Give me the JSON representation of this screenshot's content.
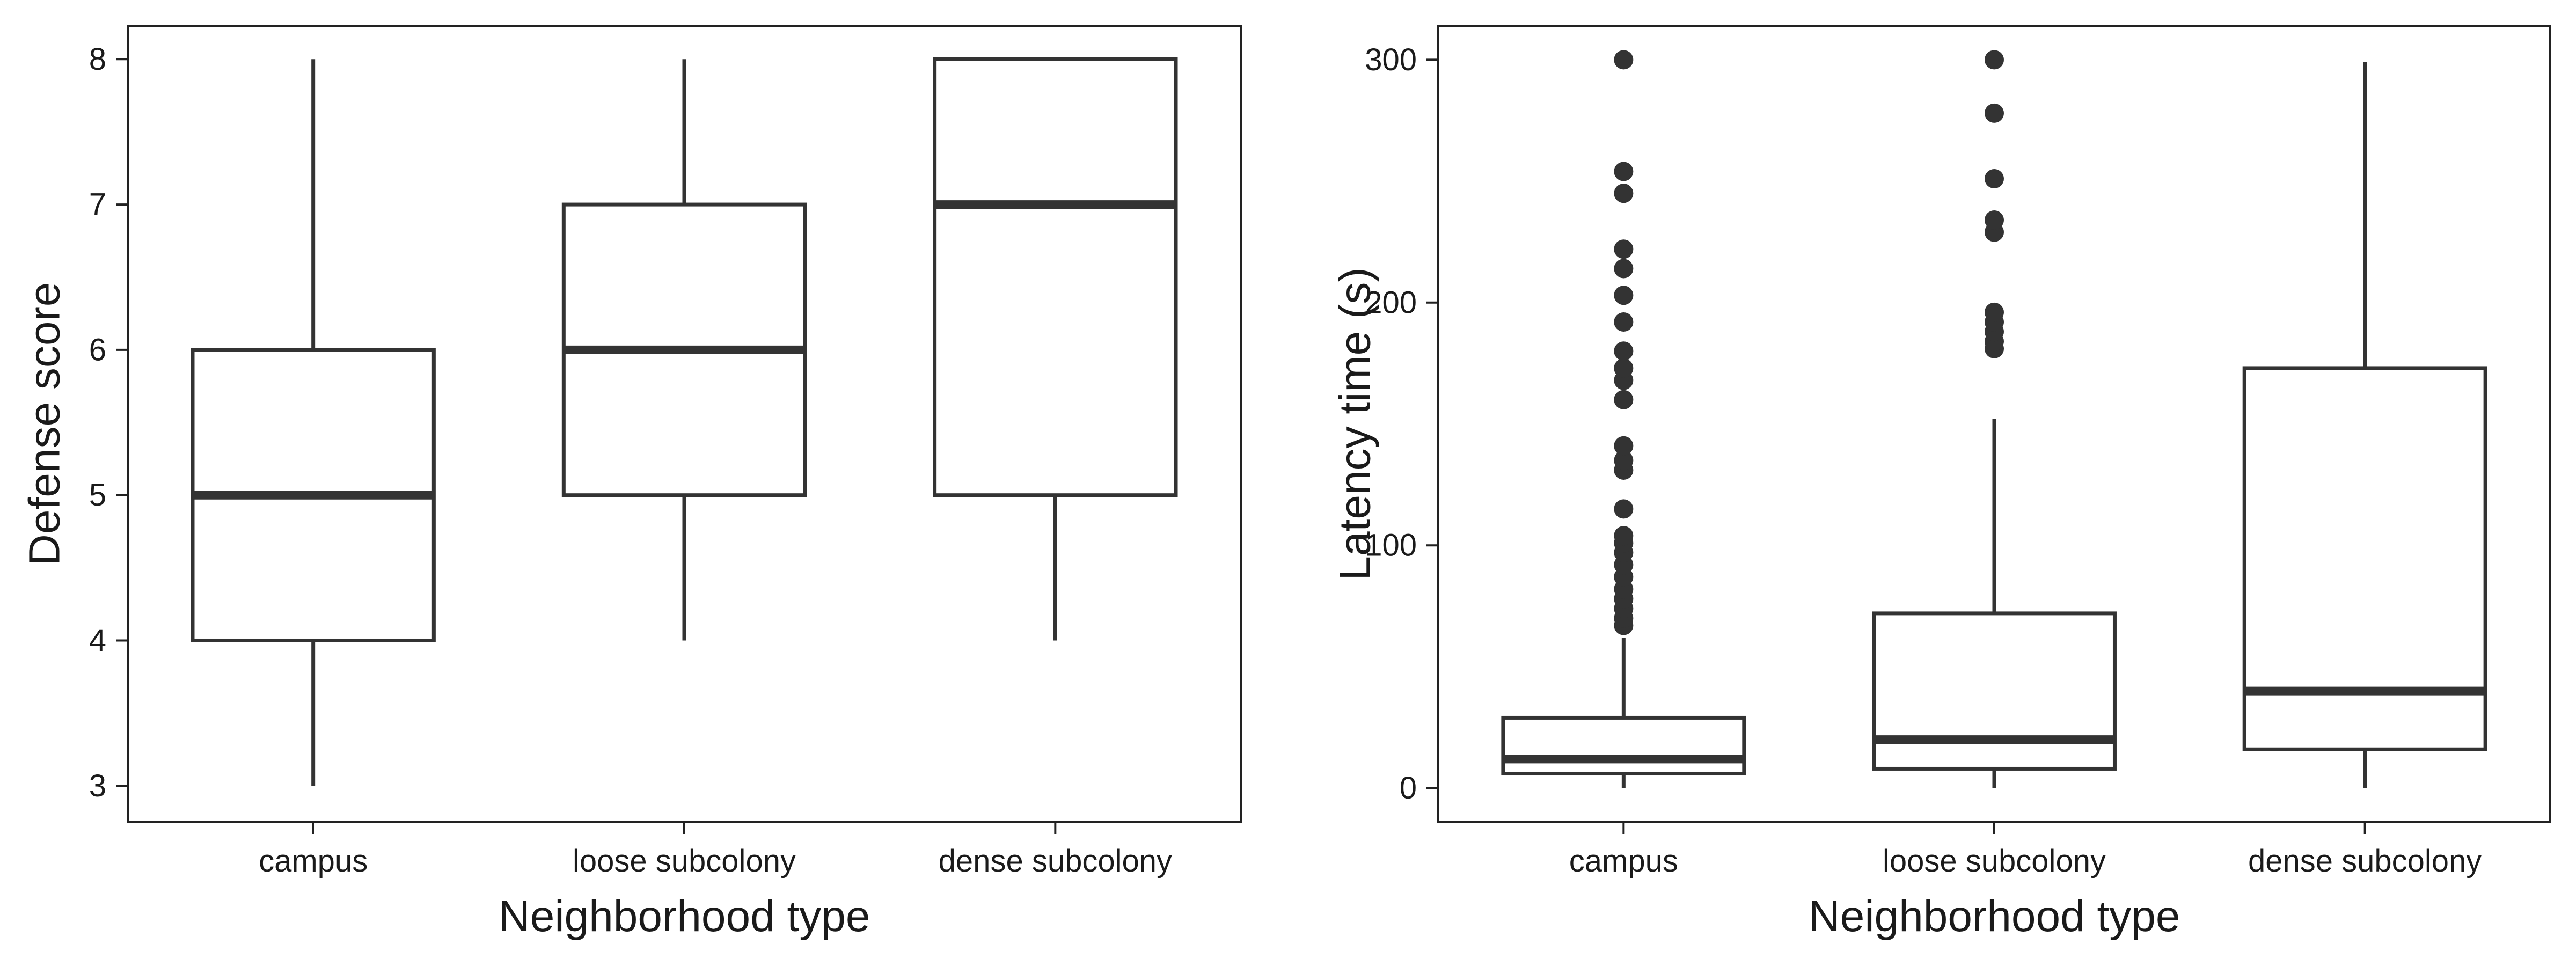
{
  "chart_data": [
    {
      "type": "boxplot",
      "xlabel": "Neighborhood type",
      "ylabel": "Defense score",
      "categories": [
        "campus",
        "loose subcolony",
        "dense subcolony"
      ],
      "ylim": [
        2.75,
        8.23
      ],
      "yticks": [
        3,
        4,
        5,
        6,
        7,
        8
      ],
      "boxes": [
        {
          "category": "campus",
          "whisker_low": 3,
          "q1": 4,
          "median": 5,
          "q3": 6,
          "whisker_high": 8,
          "outliers": []
        },
        {
          "category": "loose subcolony",
          "whisker_low": 4,
          "q1": 5,
          "median": 6,
          "q3": 7,
          "whisker_high": 8,
          "outliers": []
        },
        {
          "category": "dense subcolony",
          "whisker_low": 4,
          "q1": 5,
          "median": 7,
          "q3": 8,
          "whisker_high": 8,
          "outliers": []
        }
      ],
      "grid": false,
      "colors": {
        "stroke": "#333333",
        "fill": "#ffffff"
      }
    },
    {
      "type": "boxplot",
      "xlabel": "Neighborhood type",
      "ylabel": "Latency time (s)",
      "categories": [
        "campus",
        "loose subcolony",
        "dense subcolony"
      ],
      "ylim": [
        -14,
        314
      ],
      "yticks": [
        0,
        100,
        200,
        300
      ],
      "boxes": [
        {
          "category": "campus",
          "whisker_low": 0,
          "q1": 6,
          "median": 12,
          "q3": 29,
          "whisker_high": 62,
          "outliers": [
            67,
            70,
            74,
            78,
            82,
            87,
            92,
            97,
            101,
            104,
            115,
            131,
            135,
            141,
            160,
            168,
            173,
            180,
            192,
            203,
            214,
            222,
            245,
            254,
            300
          ]
        },
        {
          "category": "loose subcolony",
          "whisker_low": 0,
          "q1": 8,
          "median": 20,
          "q3": 72,
          "whisker_high": 152,
          "outliers": [
            181,
            184,
            188,
            192,
            196,
            229,
            234,
            251,
            278,
            300
          ]
        },
        {
          "category": "dense subcolony",
          "whisker_low": 0,
          "q1": 16,
          "median": 40,
          "q3": 173,
          "whisker_high": 299,
          "outliers": []
        }
      ],
      "grid": false,
      "colors": {
        "stroke": "#333333",
        "fill": "#ffffff"
      }
    }
  ]
}
